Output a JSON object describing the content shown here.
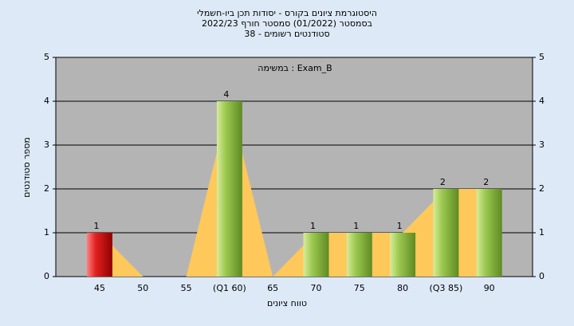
{
  "chart_data": {
    "type": "bar",
    "title": "היסטוגרמת ציונים בקורס - יסודות תכן ביו-חשמלי",
    "subtitle": "בסמסטר (01/2022) סמסטר חורף 2022/23",
    "subtitle2": "סטודנטים רשומים - 38",
    "annotation": "במשימה : Exam_B",
    "x_label": "טווח ציונים",
    "y_label": "מספר סטודנטים",
    "categories": [
      "45",
      "50",
      "55",
      "(Q1 60)",
      "65",
      "70",
      "75",
      "80",
      "(Q3 85)",
      "90"
    ],
    "values": [
      1,
      0,
      0,
      4,
      0,
      1,
      1,
      1,
      2,
      2
    ],
    "colors": [
      "#e02020",
      "#8fbf3f",
      "#8fbf3f",
      "#8fbf3f",
      "#8fbf3f",
      "#8fbf3f",
      "#8fbf3f",
      "#8fbf3f",
      "#8fbf3f",
      "#8fbf3f"
    ],
    "area_color": "#ffc85a",
    "ylim": [
      0,
      5
    ],
    "yticks": [
      0,
      1,
      2,
      3,
      4,
      5
    ],
    "y2lim": [
      0,
      5
    ],
    "y2ticks": [
      0,
      1,
      2,
      3,
      4,
      5
    ]
  }
}
